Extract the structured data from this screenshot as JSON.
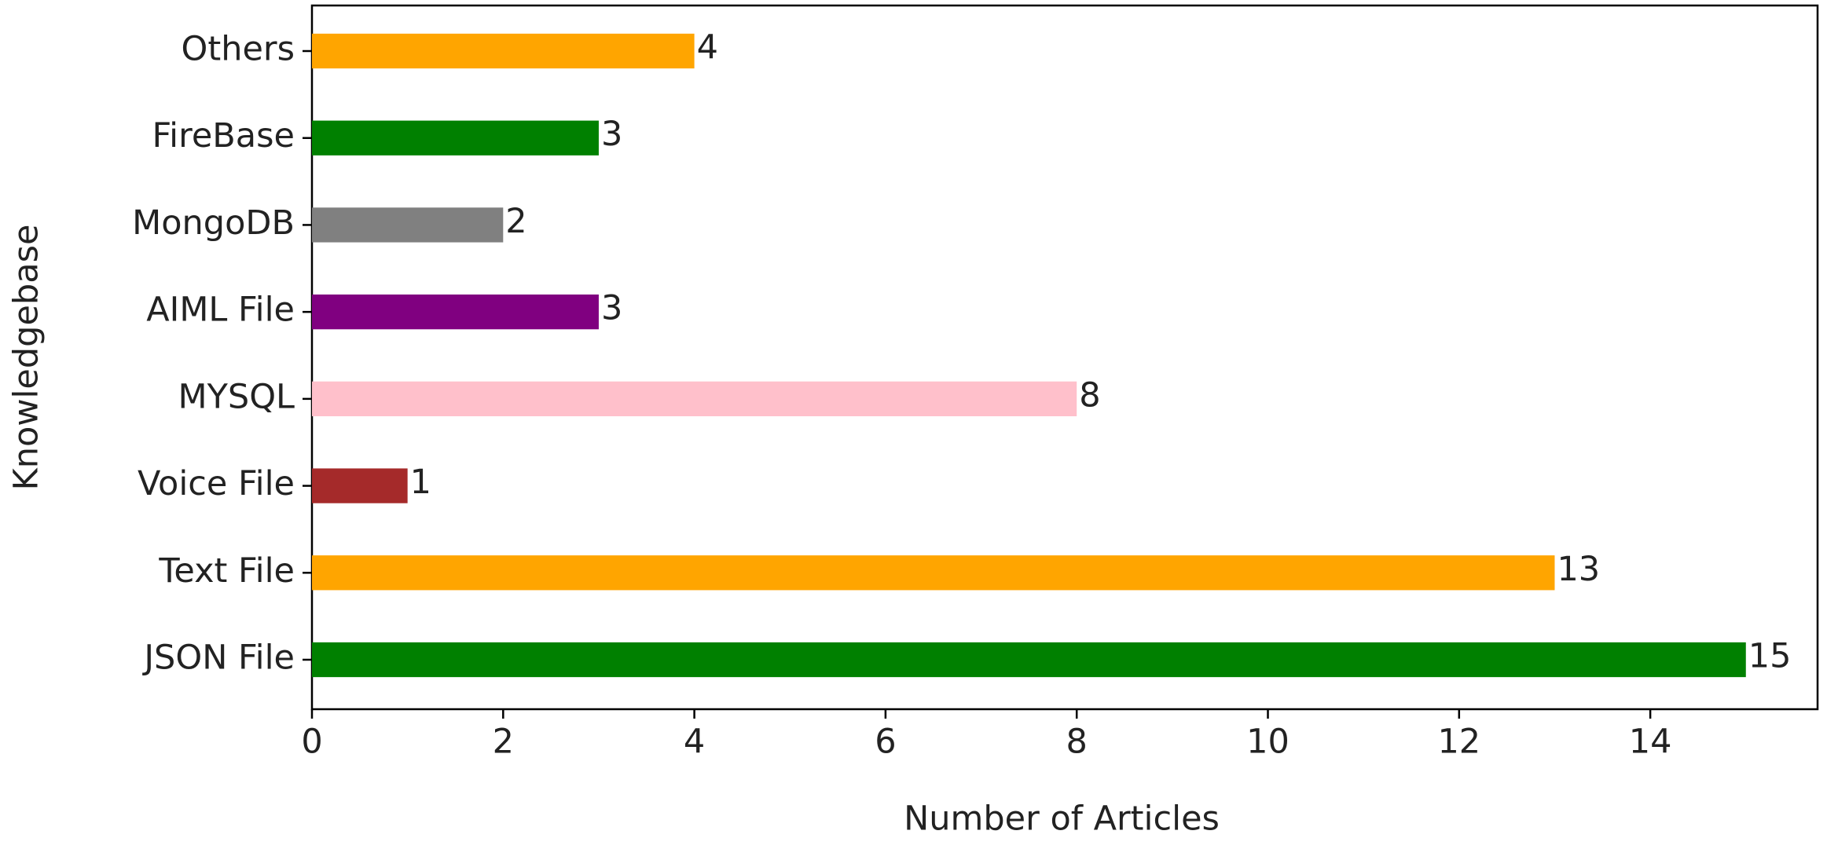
{
  "chart_data": {
    "type": "barh",
    "xlabel": "Number of Articles",
    "ylabel": "Knowledgebase",
    "categories": [
      "JSON File",
      "Text File",
      "Voice File",
      "MYSQL",
      "AIML File",
      "MongoDB",
      "FireBase",
      "Others"
    ],
    "values": [
      15,
      13,
      1,
      8,
      3,
      2,
      3,
      4
    ],
    "colors": [
      "#008000",
      "#ffa500",
      "#a52a2a",
      "#ffc0cb",
      "#800080",
      "#808080",
      "#008000",
      "#ffa500"
    ],
    "xlim": [
      0,
      15.75
    ],
    "xticks": [
      0,
      2,
      4,
      6,
      8,
      10,
      12,
      14
    ],
    "grid": false
  }
}
